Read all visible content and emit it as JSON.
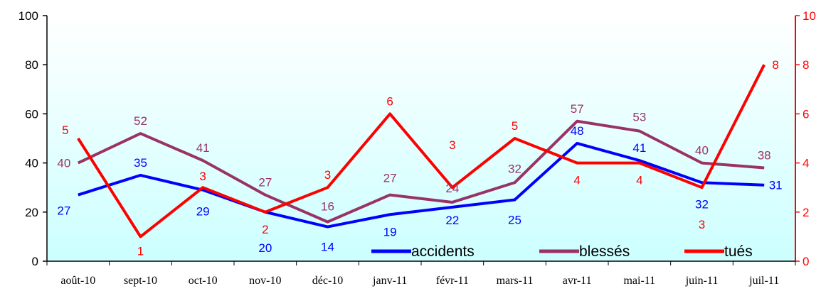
{
  "chart_data": {
    "type": "line",
    "title": "",
    "categories": [
      "août-10",
      "sept-10",
      "oct-10",
      "nov-10",
      "déc-10",
      "janv-11",
      "févr-11",
      "mars-11",
      "avr-11",
      "mai-11",
      "juin-11",
      "juil-11"
    ],
    "y_left": {
      "ticks": [
        "0",
        "20",
        "40",
        "60",
        "80",
        "100"
      ],
      "ylim": [
        0,
        100
      ]
    },
    "y_right": {
      "ticks": [
        "0",
        "2",
        "4",
        "6",
        "8",
        "10"
      ],
      "ylim": [
        0,
        10
      ]
    },
    "series": [
      {
        "name": "accidents",
        "axis": "left",
        "color": "#0000FF",
        "values": [
          27,
          35,
          29,
          20,
          14,
          19,
          22,
          25,
          48,
          41,
          32,
          31
        ]
      },
      {
        "name": "blessés",
        "axis": "left",
        "color": "#993366",
        "values": [
          40,
          52,
          41,
          27,
          16,
          27,
          24,
          32,
          57,
          53,
          40,
          38
        ]
      },
      {
        "name": "tués",
        "axis": "right",
        "color": "#FF0000",
        "values": [
          5,
          1,
          3,
          2,
          3,
          6,
          3,
          5,
          4,
          4,
          3,
          8
        ]
      }
    ],
    "legend_position": "bottom-right",
    "background": "gradient white to light cyan",
    "grid": false
  }
}
